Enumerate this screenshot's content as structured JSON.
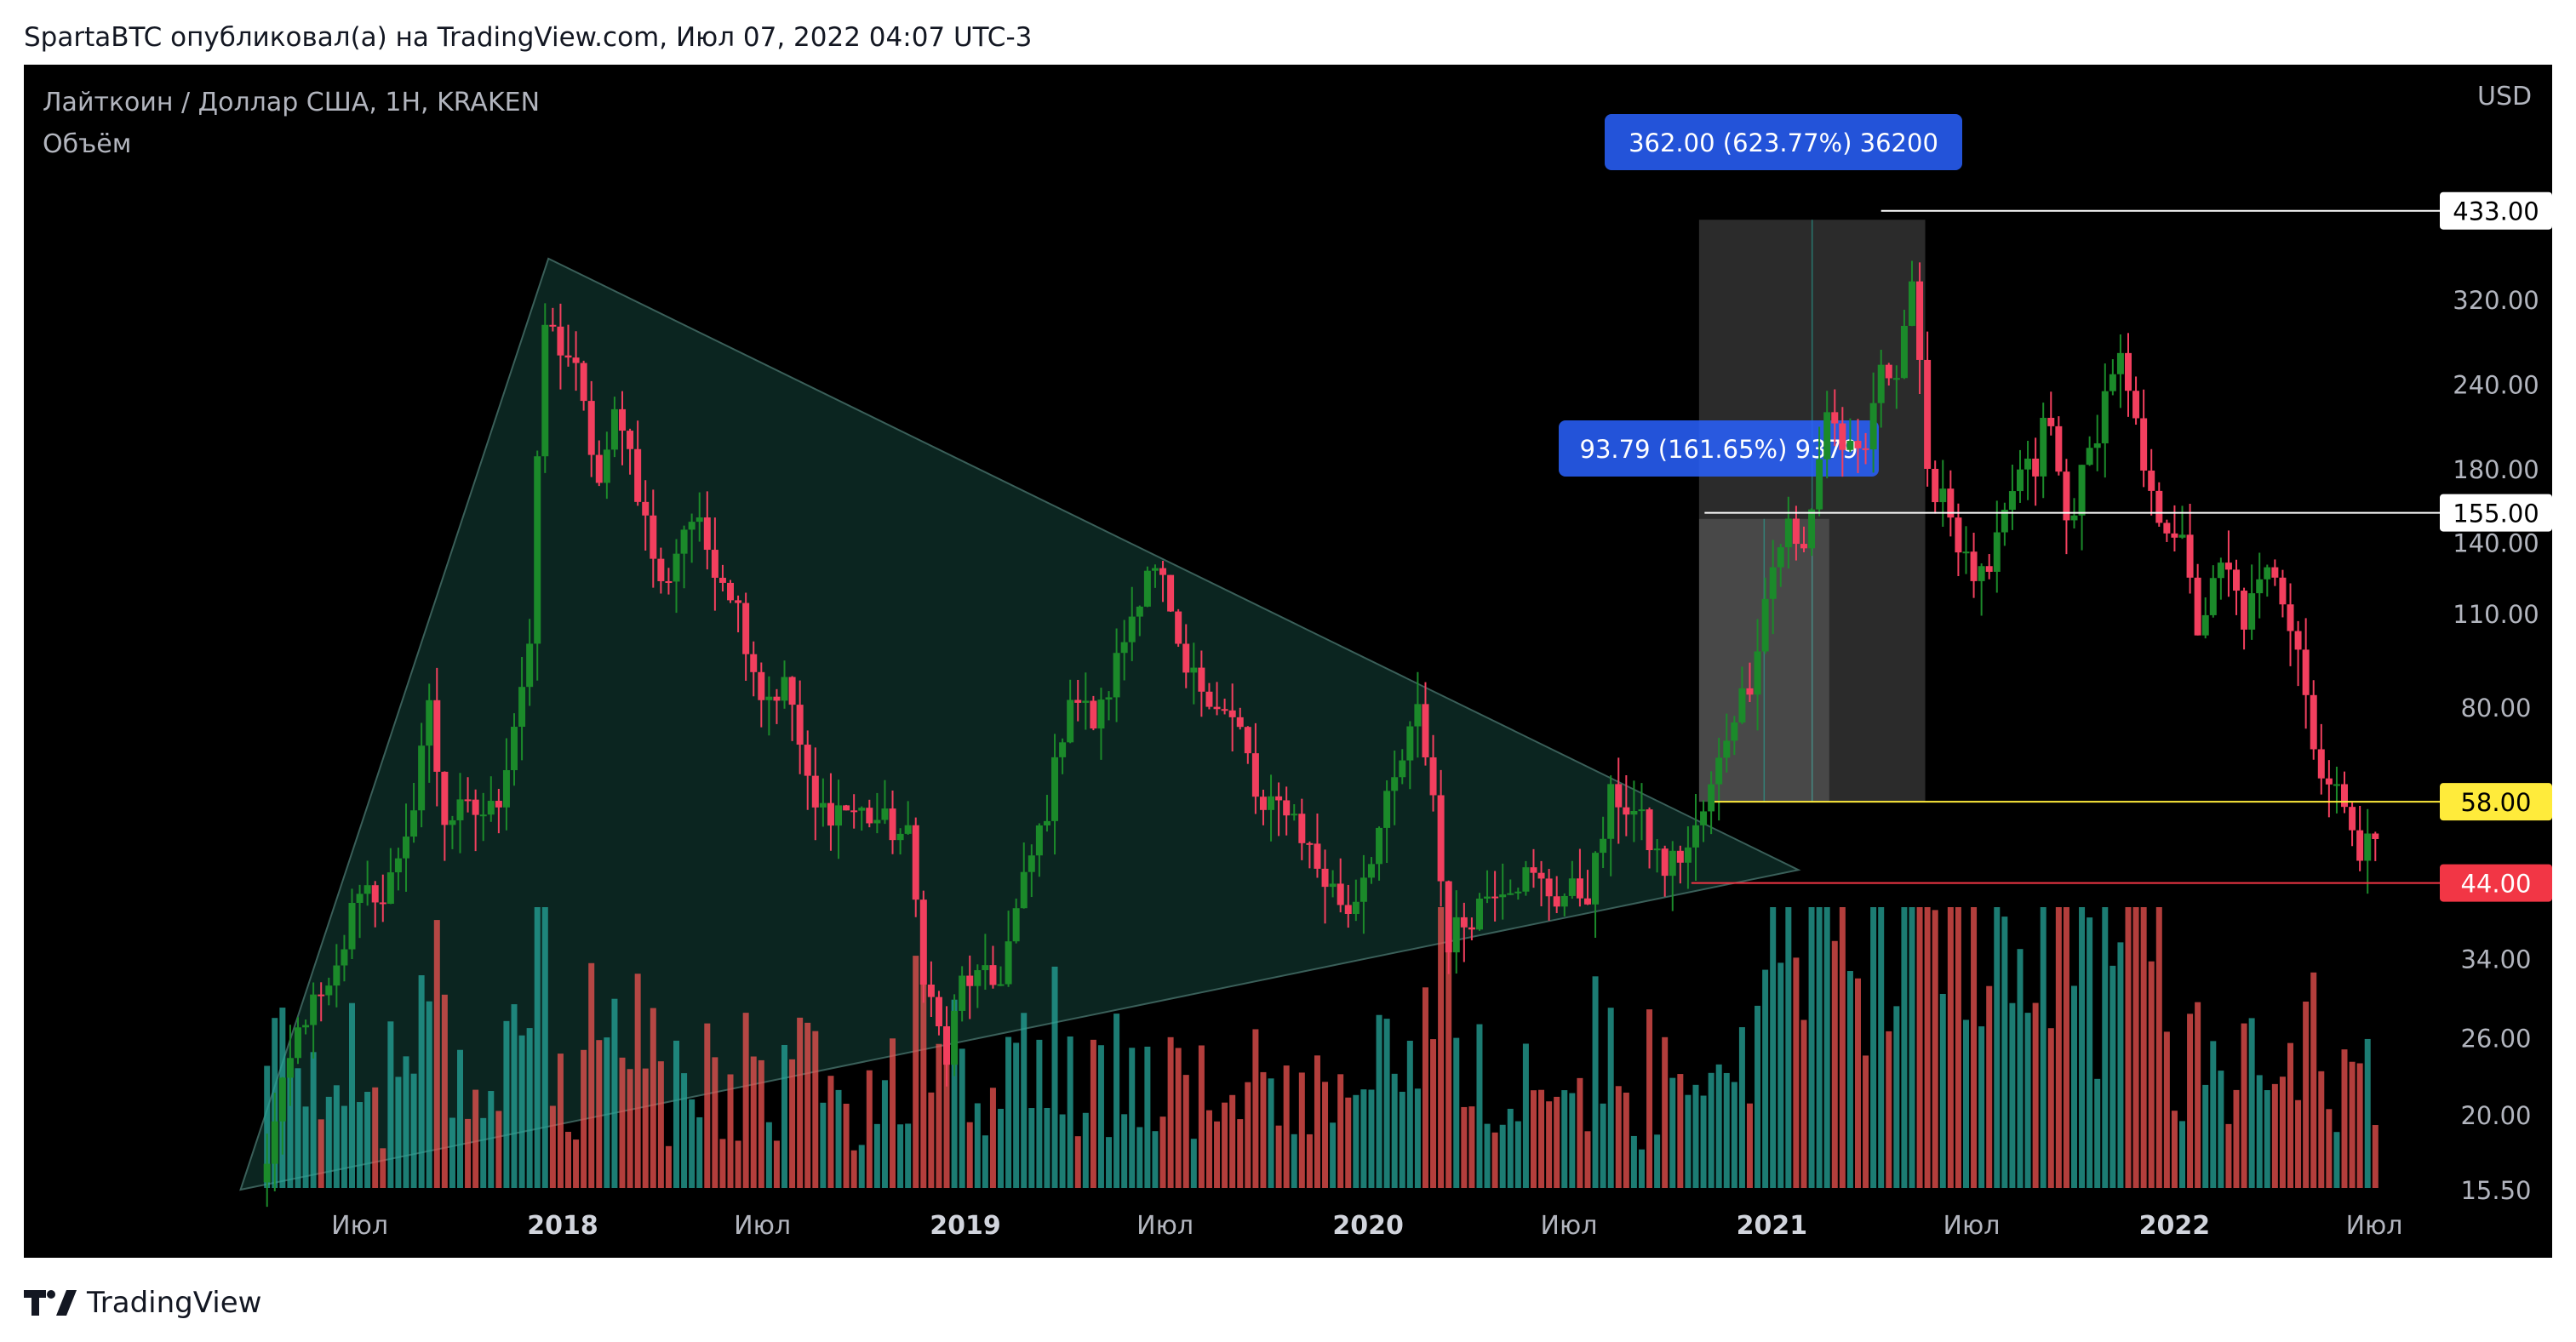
{
  "header": {
    "text": "SpartaBTC опубликовал(а) на TradingView.com, Июл 07, 2022 04:07 UTC-3"
  },
  "footer": {
    "brand": "TradingView"
  },
  "chart_data": {
    "type": "candlestick",
    "title": "Лайткоин / Доллар США, 1Н, KRAKEN",
    "subtitle": "Объём",
    "currency_label": "USD",
    "y_scale": "log",
    "ylim": [
      15.5,
      500
    ],
    "y_ticks": [
      {
        "value": 320,
        "label": "320.00"
      },
      {
        "value": 240,
        "label": "240.00"
      },
      {
        "value": 180,
        "label": "180.00"
      },
      {
        "value": 140,
        "label": "140.00"
      },
      {
        "value": 110,
        "label": "110.00"
      },
      {
        "value": 80,
        "label": "80.00"
      },
      {
        "value": 34,
        "label": "34.00"
      },
      {
        "value": 26,
        "label": "26.00"
      },
      {
        "value": 20,
        "label": "20.00"
      },
      {
        "value": 15.5,
        "label": "15.50"
      }
    ],
    "x_ticks": [
      {
        "date": "2017-07-01",
        "label": "Июл",
        "bold": false
      },
      {
        "date": "2018-01-01",
        "label": "2018",
        "bold": true
      },
      {
        "date": "2018-07-01",
        "label": "Июл",
        "bold": false
      },
      {
        "date": "2019-01-01",
        "label": "2019",
        "bold": true
      },
      {
        "date": "2019-07-01",
        "label": "Июл",
        "bold": false
      },
      {
        "date": "2020-01-01",
        "label": "2020",
        "bold": true
      },
      {
        "date": "2020-07-01",
        "label": "Июл",
        "bold": false
      },
      {
        "date": "2021-01-01",
        "label": "2021",
        "bold": true
      },
      {
        "date": "2021-07-01",
        "label": "Июл",
        "bold": false
      },
      {
        "date": "2022-01-01",
        "label": "2022",
        "bold": true
      },
      {
        "date": "2022-07-01",
        "label": "Июл",
        "bold": false
      }
    ],
    "price_levels": [
      {
        "value": 433,
        "label": "433.00",
        "color": "#ffffff",
        "text_color": "#000000",
        "from_date": "2021-04-10"
      },
      {
        "value": 155,
        "label": "155.00",
        "color": "#ffffff",
        "text_color": "#000000",
        "from_date": "2020-11-01"
      },
      {
        "value": 58,
        "label": "58.00",
        "color": "#ffeb3b",
        "text_color": "#000000",
        "from_date": "2020-11-10"
      },
      {
        "value": 44,
        "label": "44.00",
        "color": "#f23645",
        "text_color": "#ffffff",
        "from_date": "2020-10-20"
      }
    ],
    "measurements": [
      {
        "label": "362.00 (623.77%) 36200",
        "from_date": "2020-10-27",
        "to_date": "2021-05-20",
        "low": 58,
        "high": 420
      },
      {
        "label": "93.79 (161.65%) 9379",
        "from_date": "2020-10-27",
        "to_date": "2021-02-22",
        "low": 58,
        "high": 151.8
      }
    ],
    "triangle": {
      "points": [
        {
          "date": "2017-03-15",
          "price": 15.5
        },
        {
          "date": "2017-12-19",
          "price": 368
        },
        {
          "date": "2021-01-25",
          "price": 46
        }
      ],
      "fill": "#0d2b26",
      "stroke": "#3a5f59"
    },
    "colors": {
      "up": "#26a69a",
      "down": "#ef5350",
      "up_candle": "#1b8a2a",
      "down_candle": "#f23f5e"
    },
    "series": [
      {
        "name": "OHLC",
        "points": [
          {
            "date": "2017-04-01",
            "close": 15.6
          },
          {
            "date": "2017-05-10",
            "close": 28
          },
          {
            "date": "2017-06-05",
            "close": 30
          },
          {
            "date": "2017-07-01",
            "close": 44
          },
          {
            "date": "2017-07-20",
            "close": 42
          },
          {
            "date": "2017-08-10",
            "close": 47
          },
          {
            "date": "2017-09-01",
            "close": 82
          },
          {
            "date": "2017-09-15",
            "close": 55
          },
          {
            "date": "2017-10-10",
            "close": 56
          },
          {
            "date": "2017-11-01",
            "close": 56
          },
          {
            "date": "2017-11-25",
            "close": 87
          },
          {
            "date": "2017-12-05",
            "close": 105
          },
          {
            "date": "2017-12-13",
            "close": 300
          },
          {
            "date": "2017-12-25",
            "close": 280
          },
          {
            "date": "2018-01-10",
            "close": 260
          },
          {
            "date": "2018-02-05",
            "close": 165
          },
          {
            "date": "2018-02-20",
            "close": 230
          },
          {
            "date": "2018-03-15",
            "close": 155
          },
          {
            "date": "2018-04-01",
            "close": 118
          },
          {
            "date": "2018-04-25",
            "close": 155
          },
          {
            "date": "2018-05-15",
            "close": 135
          },
          {
            "date": "2018-06-05",
            "close": 118
          },
          {
            "date": "2018-07-01",
            "close": 83
          },
          {
            "date": "2018-07-25",
            "close": 86
          },
          {
            "date": "2018-08-15",
            "close": 56
          },
          {
            "date": "2018-09-10",
            "close": 57
          },
          {
            "date": "2018-10-10",
            "close": 55
          },
          {
            "date": "2018-11-10",
            "close": 51
          },
          {
            "date": "2018-11-25",
            "close": 32
          },
          {
            "date": "2018-12-15",
            "close": 24
          },
          {
            "date": "2018-12-30",
            "close": 32
          },
          {
            "date": "2019-01-30",
            "close": 31
          },
          {
            "date": "2019-02-25",
            "close": 45
          },
          {
            "date": "2019-03-20",
            "close": 60
          },
          {
            "date": "2019-04-05",
            "close": 85
          },
          {
            "date": "2019-04-30",
            "close": 75
          },
          {
            "date": "2019-05-20",
            "close": 95
          },
          {
            "date": "2019-06-15",
            "close": 130
          },
          {
            "date": "2019-06-30",
            "close": 120
          },
          {
            "date": "2019-07-15",
            "close": 90
          },
          {
            "date": "2019-08-10",
            "close": 85
          },
          {
            "date": "2019-09-10",
            "close": 72
          },
          {
            "date": "2019-09-25",
            "close": 55
          },
          {
            "date": "2019-10-20",
            "close": 58
          },
          {
            "date": "2019-11-20",
            "close": 45
          },
          {
            "date": "2019-12-15",
            "close": 40
          },
          {
            "date": "2020-01-15",
            "close": 55
          },
          {
            "date": "2020-02-15",
            "close": 78
          },
          {
            "date": "2020-02-28",
            "close": 62
          },
          {
            "date": "2020-03-12",
            "close": 36
          },
          {
            "date": "2020-03-25",
            "close": 38
          },
          {
            "date": "2020-04-25",
            "close": 44
          },
          {
            "date": "2020-05-25",
            "close": 45
          },
          {
            "date": "2020-06-20",
            "close": 42
          },
          {
            "date": "2020-07-20",
            "close": 43
          },
          {
            "date": "2020-08-10",
            "close": 60
          },
          {
            "date": "2020-09-01",
            "close": 55
          },
          {
            "date": "2020-09-25",
            "close": 46
          },
          {
            "date": "2020-10-20",
            "close": 50
          },
          {
            "date": "2020-11-10",
            "close": 62
          },
          {
            "date": "2020-11-25",
            "close": 78
          },
          {
            "date": "2020-12-10",
            "close": 85
          },
          {
            "date": "2020-12-30",
            "close": 125
          },
          {
            "date": "2021-01-15",
            "close": 150
          },
          {
            "date": "2021-01-28",
            "close": 130
          },
          {
            "date": "2021-02-20",
            "close": 220
          },
          {
            "date": "2021-03-10",
            "close": 190
          },
          {
            "date": "2021-03-25",
            "close": 180
          },
          {
            "date": "2021-04-05",
            "close": 240
          },
          {
            "date": "2021-04-25",
            "close": 260
          },
          {
            "date": "2021-05-10",
            "close": 360
          },
          {
            "date": "2021-05-20",
            "close": 170
          },
          {
            "date": "2021-06-05",
            "close": 170
          },
          {
            "date": "2021-06-25",
            "close": 130
          },
          {
            "date": "2021-07-15",
            "close": 120
          },
          {
            "date": "2021-08-10",
            "close": 175
          },
          {
            "date": "2021-08-30",
            "close": 180
          },
          {
            "date": "2021-09-07",
            "close": 225
          },
          {
            "date": "2021-09-25",
            "close": 150
          },
          {
            "date": "2021-10-15",
            "close": 185
          },
          {
            "date": "2021-11-10",
            "close": 270
          },
          {
            "date": "2021-11-25",
            "close": 210
          },
          {
            "date": "2021-12-10",
            "close": 160
          },
          {
            "date": "2022-01-05",
            "close": 145
          },
          {
            "date": "2022-01-22",
            "close": 105
          },
          {
            "date": "2022-02-15",
            "close": 130
          },
          {
            "date": "2022-03-05",
            "close": 108
          },
          {
            "date": "2022-04-01",
            "close": 130
          },
          {
            "date": "2022-04-25",
            "close": 98
          },
          {
            "date": "2022-05-11",
            "close": 62
          },
          {
            "date": "2022-05-25",
            "close": 66
          },
          {
            "date": "2022-06-15",
            "close": 47
          },
          {
            "date": "2022-06-25",
            "close": 55
          },
          {
            "date": "2022-07-07",
            "close": 51
          }
        ]
      }
    ]
  }
}
